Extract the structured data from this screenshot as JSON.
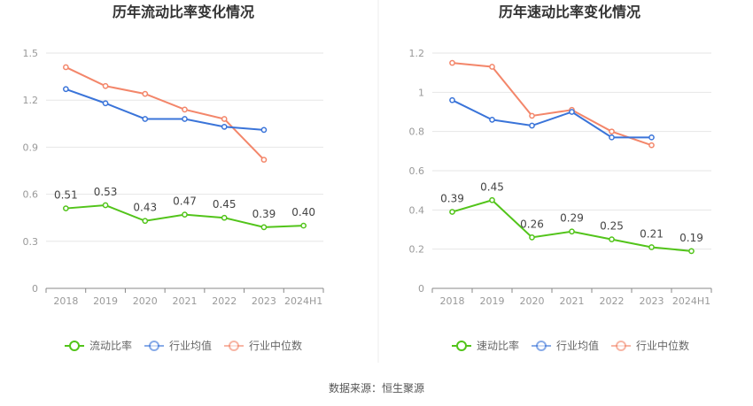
{
  "source": "数据来源：恒生聚源",
  "colors": {
    "company": "#52c41a",
    "avg": "#3a74d9",
    "median": "#f3866a"
  },
  "legend": {
    "avg": "行业均值",
    "median": "行业中位数"
  },
  "chart_data": [
    {
      "type": "line",
      "title": "历年流动比率变化情况",
      "categories": [
        "2018",
        "2019",
        "2020",
        "2021",
        "2022",
        "2023",
        "2024H1"
      ],
      "ylim": [
        0,
        1.5
      ],
      "yticks": [
        "0",
        "0.3",
        "0.6",
        "0.9",
        "1.2",
        "1.5"
      ],
      "grid": true,
      "legend_position": "bottom",
      "series": [
        {
          "key": "company",
          "name": "流动比率",
          "values": [
            0.51,
            0.53,
            0.43,
            0.47,
            0.45,
            0.39,
            0.4
          ],
          "labels": [
            "0.51",
            "0.53",
            "0.43",
            "0.47",
            "0.45",
            "0.39",
            "0.40"
          ]
        },
        {
          "key": "avg",
          "name": "行业均值",
          "values": [
            1.27,
            1.18,
            1.08,
            1.08,
            1.03,
            1.01,
            null
          ]
        },
        {
          "key": "median",
          "name": "行业中位数",
          "values": [
            1.41,
            1.29,
            1.24,
            1.14,
            1.08,
            0.82,
            null
          ]
        }
      ]
    },
    {
      "type": "line",
      "title": "历年速动比率变化情况",
      "categories": [
        "2018",
        "2019",
        "2020",
        "2021",
        "2022",
        "2023",
        "2024H1"
      ],
      "ylim": [
        0,
        1.2
      ],
      "yticks": [
        "0",
        "0.2",
        "0.4",
        "0.6",
        "0.8",
        "1",
        "1.2"
      ],
      "grid": true,
      "legend_position": "bottom",
      "series": [
        {
          "key": "company",
          "name": "速动比率",
          "values": [
            0.39,
            0.45,
            0.26,
            0.29,
            0.25,
            0.21,
            0.19
          ],
          "labels": [
            "0.39",
            "0.45",
            "0.26",
            "0.29",
            "0.25",
            "0.21",
            "0.19"
          ]
        },
        {
          "key": "avg",
          "name": "行业均值",
          "values": [
            0.96,
            0.86,
            0.83,
            0.9,
            0.77,
            0.77,
            null
          ]
        },
        {
          "key": "median",
          "name": "行业中位数",
          "values": [
            1.15,
            1.13,
            0.88,
            0.91,
            0.8,
            0.73,
            null
          ]
        }
      ]
    }
  ]
}
